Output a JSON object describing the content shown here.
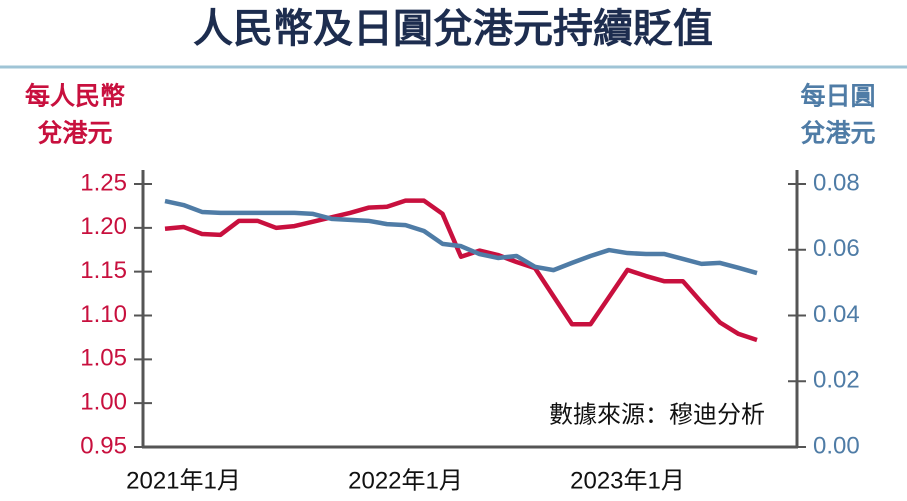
{
  "chart_data": {
    "type": "line",
    "title": "人民幣及日圓兌港元持續貶值",
    "y_label": [
      "每人民幣",
      "兌港元"
    ],
    "y2_label": [
      "每日圓",
      "兌港元"
    ],
    "annotation": "數據來源：穆迪分析",
    "categories": [
      null,
      "2021年1月",
      null,
      null,
      null,
      null,
      null,
      null,
      null,
      null,
      null,
      null,
      null,
      "2022年1月",
      null,
      null,
      null,
      null,
      null,
      null,
      null,
      null,
      null,
      null,
      null,
      "2023年1月",
      null,
      null,
      null,
      null,
      null,
      null,
      null
    ],
    "series": [
      {
        "name": "人民幣",
        "color": "#c8103e",
        "values": [
          1.199,
          1.201,
          1.193,
          1.192,
          1.208,
          1.208,
          1.2,
          1.202,
          1.207,
          1.212,
          1.217,
          1.223,
          1.224,
          1.231,
          1.231,
          1.216,
          1.167,
          1.174,
          1.169,
          1.161,
          1.154,
          1.122,
          1.09,
          1.09,
          1.121,
          1.152,
          1.145,
          1.139,
          1.139,
          1.115,
          1.092,
          1.079,
          1.072
        ]
      },
      {
        "name": "日圓",
        "color": "#4f7ca6",
        "axis": "y2",
        "values": [
          0.0748,
          0.0736,
          0.0715,
          0.0712,
          0.0712,
          0.0712,
          0.0712,
          0.0712,
          0.0709,
          0.0694,
          0.0691,
          0.0688,
          0.0678,
          0.0675,
          0.0657,
          0.0618,
          0.0611,
          0.0587,
          0.0575,
          0.0581,
          0.0548,
          0.0538,
          0.056,
          0.0581,
          0.0599,
          0.059,
          0.0587,
          0.0587,
          0.0572,
          0.0557,
          0.056,
          0.0545,
          0.0529
        ]
      }
    ],
    "ylim": [
      0.95,
      1.25
    ],
    "yticks": [
      0.95,
      {
        "value": 1,
        "label": "1.00"
      },
      1.05,
      {
        "value": 1.1,
        "label": "1.10"
      },
      1.15,
      {
        "value": 1.2,
        "label": "1.20"
      },
      1.25
    ],
    "y2lim": [
      0,
      0.08
    ],
    "y2ticks": [
      {
        "value": 0,
        "label": "0.00"
      },
      0.02,
      0.04,
      0.06,
      0.08
    ]
  }
}
